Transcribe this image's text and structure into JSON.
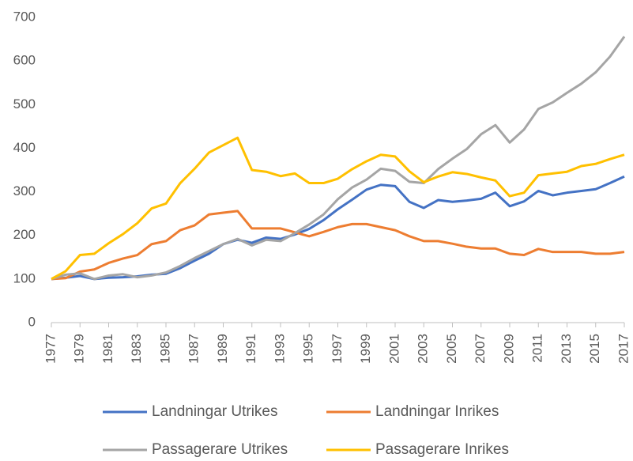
{
  "chart_data": {
    "type": "line",
    "x": [
      1977,
      1978,
      1979,
      1980,
      1981,
      1982,
      1983,
      1984,
      1985,
      1986,
      1987,
      1988,
      1989,
      1990,
      1991,
      1992,
      1993,
      1994,
      1995,
      1996,
      1997,
      1998,
      1999,
      2000,
      2001,
      2002,
      2003,
      2004,
      2005,
      2006,
      2007,
      2008,
      2009,
      2010,
      2011,
      2012,
      2013,
      2014,
      2015,
      2016,
      2017
    ],
    "xlim": [
      1977,
      2017
    ],
    "xticks": [
      1977,
      1979,
      1981,
      1983,
      1985,
      1987,
      1989,
      1991,
      1993,
      1995,
      1997,
      1999,
      2001,
      2003,
      2005,
      2007,
      2009,
      2011,
      2013,
      2015,
      2017
    ],
    "ylim": [
      0,
      700
    ],
    "yticks": [
      0,
      100,
      200,
      300,
      400,
      500,
      600,
      700
    ],
    "grid": false,
    "legend": "bottom",
    "series": [
      {
        "name": "Landningar Utrikes",
        "color": "#4472c4",
        "values": [
          100,
          103,
          107,
          100,
          103,
          104,
          106,
          110,
          112,
          125,
          142,
          158,
          180,
          190,
          183,
          195,
          192,
          202,
          215,
          235,
          260,
          282,
          305,
          316,
          313,
          277,
          263,
          281,
          277,
          280,
          284,
          298,
          267,
          278,
          302,
          292,
          298,
          302,
          306,
          320,
          335
        ]
      },
      {
        "name": "Landningar Inrikes",
        "color": "#ed7d31",
        "values": [
          100,
          102,
          117,
          122,
          137,
          147,
          155,
          180,
          187,
          212,
          223,
          248,
          252,
          256,
          216,
          216,
          216,
          207,
          198,
          208,
          219,
          226,
          226,
          219,
          212,
          198,
          187,
          187,
          181,
          174,
          170,
          170,
          158,
          155,
          169,
          162,
          162,
          162,
          158,
          158,
          162
        ]
      },
      {
        "name": "Passagerare Utrikes",
        "color": "#a5a5a5",
        "values": [
          100,
          110,
          113,
          100,
          108,
          111,
          104,
          108,
          115,
          130,
          148,
          164,
          180,
          192,
          177,
          190,
          187,
          205,
          225,
          248,
          283,
          310,
          328,
          353,
          348,
          323,
          320,
          352,
          376,
          398,
          432,
          453,
          413,
          443,
          490,
          505,
          527,
          548,
          574,
          610,
          656
        ]
      },
      {
        "name": "Passagerare Inrikes",
        "color": "#ffc000",
        "values": [
          100,
          118,
          155,
          158,
          182,
          203,
          228,
          262,
          273,
          320,
          353,
          390,
          407,
          424,
          350,
          346,
          336,
          342,
          320,
          320,
          330,
          352,
          370,
          385,
          381,
          347,
          322,
          335,
          345,
          341,
          333,
          326,
          290,
          298,
          338,
          342,
          346,
          359,
          364,
          375,
          385
        ]
      }
    ]
  }
}
